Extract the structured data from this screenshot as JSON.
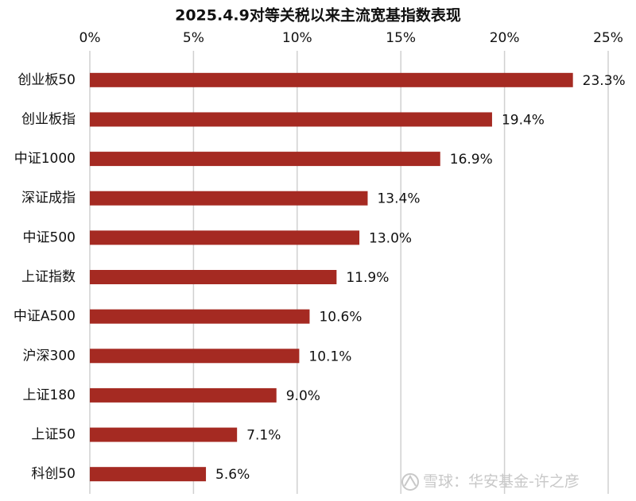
{
  "chart_data": {
    "type": "hbar",
    "title": "2025.4.9对等关税以来主流宽基指数表现",
    "categories": [
      "创业板50",
      "创业板指",
      "中证1000",
      "深证成指",
      "中证500",
      "上证指数",
      "中证A500",
      "沪深300",
      "上证180",
      "上证50",
      "科创50"
    ],
    "values": [
      23.3,
      19.4,
      16.9,
      13.4,
      13.0,
      11.9,
      10.6,
      10.1,
      9.0,
      7.1,
      5.6
    ],
    "value_labels": [
      "23.3%",
      "19.4%",
      "16.9%",
      "13.4%",
      "13.0%",
      "11.9%",
      "10.6%",
      "10.1%",
      "9.0%",
      "7.1%",
      "5.6%"
    ],
    "color": "#a52a22",
    "xlim": [
      0,
      25
    ],
    "xticks": [
      {
        "value": 0,
        "label": "0%"
      },
      {
        "value": 5,
        "label": "5%"
      },
      {
        "value": 10,
        "label": "10%"
      },
      {
        "value": 15,
        "label": "15%"
      },
      {
        "value": 20,
        "label": "20%"
      },
      {
        "value": 25,
        "label": "25%"
      }
    ],
    "grid": true,
    "watermark": "雪球：华安基金-许之彦"
  }
}
